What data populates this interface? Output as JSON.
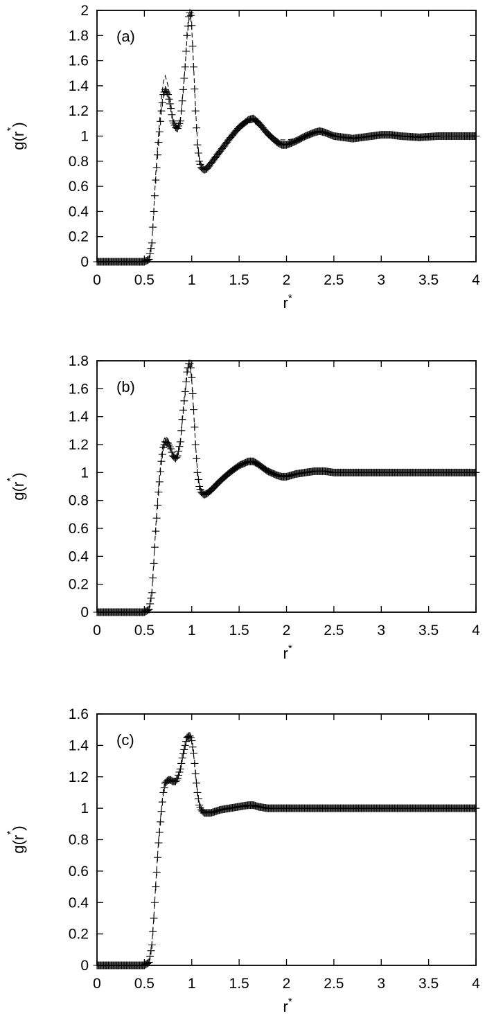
{
  "chart_data": [
    {
      "type": "line",
      "panel_label": "(a)",
      "xlabel": "r",
      "xlabel_sup": "*",
      "ylabel": "g(r )",
      "ylabel_sup": "*",
      "xlim": [
        0,
        4
      ],
      "ylim": [
        0,
        2
      ],
      "xticks": [
        "0",
        "0.5",
        "1",
        "1.5",
        "2",
        "2.5",
        "3",
        "3.5",
        "4"
      ],
      "yticks": [
        "0",
        "0.2",
        "0.4",
        "0.6",
        "0.8",
        "1",
        "1.2",
        "1.4",
        "1.6",
        "1.8",
        "2"
      ],
      "grid": false,
      "series": [
        {
          "style": "points-plus",
          "x": [
            0.0,
            0.5,
            0.55,
            0.58,
            0.6,
            0.62,
            0.65,
            0.68,
            0.7,
            0.72,
            0.75,
            0.78,
            0.8,
            0.83,
            0.85,
            0.88,
            0.9,
            0.93,
            0.95,
            0.97,
            0.98,
            0.99,
            1.0,
            1.02,
            1.04,
            1.06,
            1.08,
            1.1,
            1.13,
            1.16,
            1.2,
            1.3,
            1.4,
            1.5,
            1.6,
            1.65,
            1.7,
            1.8,
            1.9,
            1.95,
            2.0,
            2.1,
            2.2,
            2.3,
            2.35,
            2.4,
            2.5,
            2.6,
            2.7,
            2.8,
            2.9,
            3.0,
            3.1,
            3.2,
            3.4,
            3.6,
            3.8,
            4.0
          ],
          "y": [
            0.0,
            0.0,
            0.02,
            0.15,
            0.4,
            0.65,
            0.95,
            1.2,
            1.33,
            1.37,
            1.33,
            1.22,
            1.12,
            1.07,
            1.06,
            1.12,
            1.28,
            1.55,
            1.8,
            1.95,
            1.98,
            1.96,
            1.88,
            1.55,
            1.2,
            0.93,
            0.8,
            0.75,
            0.73,
            0.74,
            0.78,
            0.88,
            0.98,
            1.07,
            1.13,
            1.14,
            1.11,
            1.02,
            0.95,
            0.93,
            0.93,
            0.96,
            1.0,
            1.03,
            1.04,
            1.03,
            1.0,
            0.99,
            0.98,
            0.99,
            1.0,
            1.01,
            1.01,
            1.0,
            0.99,
            1.0,
            1.0,
            1.0
          ]
        },
        {
          "style": "dashed-line",
          "x": [
            0.0,
            0.5,
            0.55,
            0.58,
            0.6,
            0.62,
            0.65,
            0.68,
            0.7,
            0.72,
            0.75,
            0.78,
            0.8,
            0.83,
            0.85,
            0.88,
            0.9,
            0.93,
            0.95,
            0.97,
            0.98,
            0.99,
            1.0,
            1.02,
            1.04,
            1.06,
            1.08,
            1.1,
            1.13,
            1.16,
            1.2,
            1.3,
            1.4,
            1.5,
            1.6,
            1.65,
            1.7,
            1.8,
            1.9,
            1.95,
            2.0,
            2.1,
            2.2,
            2.3,
            2.35,
            2.4,
            2.5,
            2.6,
            2.7,
            2.8,
            2.9,
            3.0,
            3.1,
            3.2,
            3.4,
            3.6,
            3.8,
            4.0
          ],
          "y": [
            0.0,
            0.0,
            0.02,
            0.16,
            0.42,
            0.7,
            1.02,
            1.3,
            1.43,
            1.48,
            1.4,
            1.25,
            1.13,
            1.08,
            1.07,
            1.12,
            1.28,
            1.55,
            1.78,
            1.92,
            1.95,
            1.93,
            1.86,
            1.55,
            1.22,
            0.96,
            0.83,
            0.78,
            0.76,
            0.77,
            0.8,
            0.9,
            0.99,
            1.07,
            1.11,
            1.11,
            1.08,
            1.02,
            0.98,
            0.97,
            0.97,
            0.98,
            1.0,
            1.02,
            1.03,
            1.02,
            1.0,
            0.99,
            0.99,
            0.99,
            1.0,
            1.01,
            1.01,
            1.0,
            1.0,
            1.0,
            1.0,
            1.0
          ]
        }
      ]
    },
    {
      "type": "line",
      "panel_label": "(b)",
      "xlabel": "r",
      "xlabel_sup": "*",
      "ylabel": "g(r )",
      "ylabel_sup": "*",
      "xlim": [
        0,
        4
      ],
      "ylim": [
        0,
        1.8
      ],
      "xticks": [
        "0",
        "0.5",
        "1",
        "1.5",
        "2",
        "2.5",
        "3",
        "3.5",
        "4"
      ],
      "yticks": [
        "0",
        "0.2",
        "0.4",
        "0.6",
        "0.8",
        "1",
        "1.2",
        "1.4",
        "1.6",
        "1.8"
      ],
      "grid": false,
      "series": [
        {
          "style": "points-plus",
          "x": [
            0.0,
            0.5,
            0.55,
            0.58,
            0.6,
            0.62,
            0.65,
            0.68,
            0.7,
            0.72,
            0.75,
            0.78,
            0.8,
            0.83,
            0.85,
            0.88,
            0.9,
            0.93,
            0.95,
            0.97,
            0.98,
            0.99,
            1.0,
            1.02,
            1.04,
            1.06,
            1.08,
            1.1,
            1.13,
            1.16,
            1.2,
            1.3,
            1.4,
            1.5,
            1.6,
            1.65,
            1.7,
            1.8,
            1.9,
            1.95,
            2.0,
            2.1,
            2.2,
            2.3,
            2.35,
            2.4,
            2.5,
            2.6,
            2.7,
            2.8,
            2.9,
            3.0,
            3.1,
            3.2,
            3.4,
            3.6,
            3.8,
            4.0
          ],
          "y": [
            0.0,
            0.0,
            0.02,
            0.14,
            0.35,
            0.58,
            0.86,
            1.08,
            1.18,
            1.22,
            1.21,
            1.17,
            1.12,
            1.1,
            1.12,
            1.22,
            1.38,
            1.58,
            1.72,
            1.78,
            1.78,
            1.75,
            1.68,
            1.45,
            1.2,
            1.0,
            0.9,
            0.86,
            0.84,
            0.85,
            0.87,
            0.94,
            1.0,
            1.05,
            1.08,
            1.08,
            1.06,
            1.01,
            0.98,
            0.97,
            0.97,
            0.99,
            1.0,
            1.01,
            1.01,
            1.01,
            1.0,
            1.0,
            1.0,
            1.0,
            1.0,
            1.0,
            1.0,
            1.0,
            1.0,
            1.0,
            1.0,
            1.0
          ]
        },
        {
          "style": "dashed-line",
          "x": [
            0.0,
            0.5,
            0.55,
            0.58,
            0.6,
            0.62,
            0.65,
            0.68,
            0.7,
            0.72,
            0.75,
            0.78,
            0.8,
            0.83,
            0.85,
            0.88,
            0.9,
            0.93,
            0.95,
            0.97,
            0.98,
            0.99,
            1.0,
            1.02,
            1.04,
            1.06,
            1.08,
            1.1,
            1.13,
            1.16,
            1.2,
            1.3,
            1.4,
            1.5,
            1.6,
            1.65,
            1.7,
            1.8,
            1.9,
            1.95,
            2.0,
            2.1,
            2.2,
            2.3,
            2.35,
            2.4,
            2.5,
            2.6,
            2.7,
            2.8,
            2.9,
            3.0,
            3.1,
            3.2,
            3.4,
            3.6,
            3.8,
            4.0
          ],
          "y": [
            0.0,
            0.0,
            0.02,
            0.15,
            0.37,
            0.61,
            0.9,
            1.12,
            1.22,
            1.26,
            1.24,
            1.18,
            1.13,
            1.11,
            1.12,
            1.21,
            1.37,
            1.56,
            1.7,
            1.76,
            1.76,
            1.73,
            1.66,
            1.44,
            1.2,
            1.01,
            0.91,
            0.87,
            0.85,
            0.86,
            0.88,
            0.95,
            1.01,
            1.05,
            1.07,
            1.07,
            1.05,
            1.01,
            0.99,
            0.98,
            0.98,
            0.99,
            1.0,
            1.01,
            1.01,
            1.01,
            1.0,
            1.0,
            1.0,
            1.0,
            1.0,
            1.0,
            1.0,
            1.0,
            1.0,
            1.0,
            1.0,
            1.0
          ]
        }
      ]
    },
    {
      "type": "line",
      "panel_label": "(c)",
      "xlabel": "r",
      "xlabel_sup": "*",
      "ylabel": "g(r )",
      "ylabel_sup": "*",
      "xlim": [
        0,
        4
      ],
      "ylim": [
        0,
        1.6
      ],
      "xticks": [
        "0",
        "0.5",
        "1",
        "1.5",
        "2",
        "2.5",
        "3",
        "3.5",
        "4"
      ],
      "yticks": [
        "0",
        "0.2",
        "0.4",
        "0.6",
        "0.8",
        "1",
        "1.2",
        "1.4",
        "1.6"
      ],
      "grid": false,
      "series": [
        {
          "style": "points-plus",
          "x": [
            0.0,
            0.5,
            0.55,
            0.58,
            0.6,
            0.62,
            0.65,
            0.68,
            0.7,
            0.72,
            0.75,
            0.78,
            0.8,
            0.83,
            0.85,
            0.88,
            0.9,
            0.93,
            0.95,
            0.97,
            0.98,
            0.99,
            1.0,
            1.02,
            1.04,
            1.06,
            1.08,
            1.1,
            1.13,
            1.16,
            1.2,
            1.25,
            1.3,
            1.4,
            1.5,
            1.6,
            1.65,
            1.7,
            1.8,
            1.9,
            2.0,
            2.2,
            2.4,
            2.6,
            2.8,
            3.0,
            3.2,
            3.4,
            3.6,
            3.8,
            4.0
          ],
          "y": [
            0.0,
            0.0,
            0.02,
            0.13,
            0.3,
            0.5,
            0.78,
            0.98,
            1.1,
            1.16,
            1.18,
            1.18,
            1.17,
            1.17,
            1.19,
            1.25,
            1.32,
            1.4,
            1.45,
            1.46,
            1.46,
            1.45,
            1.43,
            1.35,
            1.22,
            1.1,
            1.02,
            0.99,
            0.97,
            0.97,
            0.97,
            0.98,
            0.99,
            1.0,
            1.01,
            1.02,
            1.02,
            1.01,
            1.0,
            1.0,
            1.0,
            1.0,
            1.0,
            1.0,
            1.0,
            1.0,
            1.0,
            1.0,
            1.0,
            1.0,
            1.0
          ]
        },
        {
          "style": "dashed-line",
          "x": [
            0.0,
            0.5,
            0.55,
            0.58,
            0.6,
            0.62,
            0.65,
            0.68,
            0.7,
            0.72,
            0.75,
            0.78,
            0.8,
            0.83,
            0.85,
            0.88,
            0.9,
            0.93,
            0.95,
            0.97,
            0.98,
            0.99,
            1.0,
            1.02,
            1.04,
            1.06,
            1.08,
            1.1,
            1.13,
            1.16,
            1.2,
            1.25,
            1.3,
            1.4,
            1.5,
            1.6,
            1.65,
            1.7,
            1.8,
            1.9,
            2.0,
            2.2,
            2.4,
            2.6,
            2.8,
            3.0,
            3.2,
            3.4,
            3.6,
            3.8,
            4.0
          ],
          "y": [
            0.0,
            0.0,
            0.02,
            0.14,
            0.31,
            0.52,
            0.8,
            1.0,
            1.11,
            1.17,
            1.19,
            1.19,
            1.18,
            1.17,
            1.19,
            1.24,
            1.31,
            1.39,
            1.44,
            1.45,
            1.45,
            1.44,
            1.42,
            1.34,
            1.22,
            1.1,
            1.03,
            1.0,
            0.98,
            0.98,
            0.98,
            0.98,
            0.99,
            1.0,
            1.01,
            1.01,
            1.01,
            1.01,
            1.0,
            1.0,
            1.0,
            1.0,
            1.0,
            1.0,
            1.0,
            1.0,
            1.0,
            1.0,
            1.0,
            1.0,
            1.0
          ]
        }
      ]
    }
  ]
}
